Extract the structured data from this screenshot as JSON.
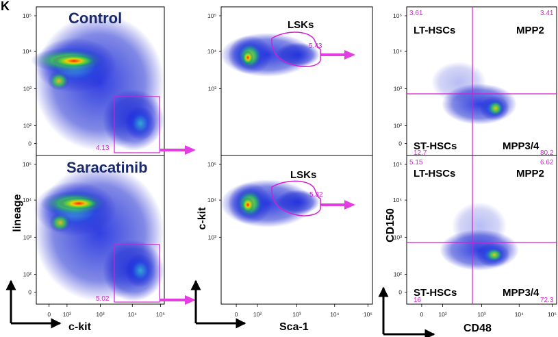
{
  "figure": {
    "panel_letter": "K",
    "conditions": [
      "Control",
      "Saracatinib"
    ],
    "columns": [
      {
        "x_axis": "c-kit",
        "y_axis": "lineage",
        "x_ticks": [
          "0",
          "10²",
          "10³",
          "10⁴",
          "10⁵"
        ],
        "y_ticks": [
          "10⁵",
          "10⁴",
          "10³",
          "10²",
          "0"
        ],
        "gate_name": "",
        "gate_values": [
          "4.13",
          "5.02"
        ]
      },
      {
        "x_axis": "Sca-1",
        "y_axis": "c-kit",
        "x_ticks": [
          "0",
          "10²",
          "10³",
          "10⁴",
          "10⁵"
        ],
        "y_ticks": [
          "10⁵",
          "10⁴",
          "10³"
        ],
        "gate_name": "LSKs",
        "gate_values": [
          "5.43",
          "5.32"
        ]
      },
      {
        "x_axis": "CD48",
        "y_axis": "CD150",
        "x_ticks": [
          "0",
          "10²",
          "10³",
          "10⁴",
          "10⁵"
        ],
        "y_ticks": [
          "10⁵",
          "10⁴",
          "10³",
          "10²",
          "0"
        ],
        "quadrant_labels": [
          "LT-HSCs",
          "MPP2",
          "ST-HSCs",
          "MPP3/4"
        ],
        "quadrant_values": [
          [
            "3.61",
            "3.41",
            "12.7",
            "80.2"
          ],
          [
            "5.15",
            "6.62",
            "16",
            "72.3"
          ]
        ]
      }
    ],
    "colors": {
      "gate": "#d21fd2",
      "arrow": "#e23ee2",
      "condition_text": "#1a2a6c",
      "density_low": "#1a1ad0",
      "density_mid": "#22cc44",
      "density_high": "#ff2000"
    }
  }
}
